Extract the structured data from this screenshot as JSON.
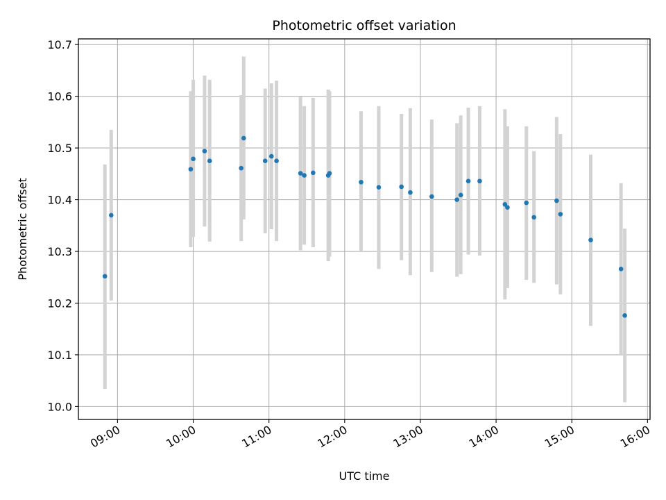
{
  "chart_data": {
    "type": "scatter",
    "title": "Photometric offset variation",
    "xlabel": "UTC time",
    "ylabel": "Photometric offset",
    "xlim": [
      "08:29",
      "16:02"
    ],
    "ylim": [
      9.975,
      10.711
    ],
    "x_ticks": [
      "09:00",
      "10:00",
      "11:00",
      "12:00",
      "13:00",
      "14:00",
      "15:00",
      "16:00"
    ],
    "y_ticks": [
      10.0,
      10.1,
      10.2,
      10.3,
      10.4,
      10.5,
      10.6,
      10.7
    ],
    "y_tick_labels": [
      "10.0",
      "10.1",
      "10.2",
      "10.3",
      "10.4",
      "10.5",
      "10.6",
      "10.7"
    ],
    "grid": true,
    "colors": {
      "points": "#1f77b4",
      "error_bars": "#d3d3d3",
      "grid": "#b0b0b0"
    },
    "points": [
      {
        "x": "08:50",
        "y": 10.252,
        "y_low": 10.034,
        "y_high": 10.468
      },
      {
        "x": "08:55",
        "y": 10.37,
        "y_low": 10.205,
        "y_high": 10.535
      },
      {
        "x": "09:58",
        "y": 10.459,
        "y_low": 10.308,
        "y_high": 10.61
      },
      {
        "x": "10:00",
        "y": 10.479,
        "y_low": 10.328,
        "y_high": 10.632
      },
      {
        "x": "10:09",
        "y": 10.494,
        "y_low": 10.348,
        "y_high": 10.64
      },
      {
        "x": "10:13",
        "y": 10.475,
        "y_low": 10.319,
        "y_high": 10.632
      },
      {
        "x": "10:38",
        "y": 10.461,
        "y_low": 10.32,
        "y_high": 10.602
      },
      {
        "x": "10:40",
        "y": 10.519,
        "y_low": 10.362,
        "y_high": 10.677
      },
      {
        "x": "10:57",
        "y": 10.475,
        "y_low": 10.335,
        "y_high": 10.615
      },
      {
        "x": "11:02",
        "y": 10.484,
        "y_low": 10.343,
        "y_high": 10.625
      },
      {
        "x": "11:06",
        "y": 10.475,
        "y_low": 10.32,
        "y_high": 10.63
      },
      {
        "x": "11:25",
        "y": 10.451,
        "y_low": 10.302,
        "y_high": 10.599
      },
      {
        "x": "11:28",
        "y": 10.447,
        "y_low": 10.313,
        "y_high": 10.581
      },
      {
        "x": "11:35",
        "y": 10.452,
        "y_low": 10.308,
        "y_high": 10.597
      },
      {
        "x": "11:47",
        "y": 10.447,
        "y_low": 10.281,
        "y_high": 10.613
      },
      {
        "x": "11:48",
        "y": 10.451,
        "y_low": 10.29,
        "y_high": 10.61
      },
      {
        "x": "12:13",
        "y": 10.434,
        "y_low": 10.3,
        "y_high": 10.571
      },
      {
        "x": "12:27",
        "y": 10.424,
        "y_low": 10.266,
        "y_high": 10.581
      },
      {
        "x": "12:45",
        "y": 10.425,
        "y_low": 10.283,
        "y_high": 10.566
      },
      {
        "x": "12:52",
        "y": 10.414,
        "y_low": 10.254,
        "y_high": 10.577
      },
      {
        "x": "13:09",
        "y": 10.406,
        "y_low": 10.26,
        "y_high": 10.555
      },
      {
        "x": "13:29",
        "y": 10.4,
        "y_low": 10.251,
        "y_high": 10.548
      },
      {
        "x": "13:32",
        "y": 10.409,
        "y_low": 10.256,
        "y_high": 10.563
      },
      {
        "x": "13:38",
        "y": 10.436,
        "y_low": 10.294,
        "y_high": 10.578
      },
      {
        "x": "13:47",
        "y": 10.436,
        "y_low": 10.292,
        "y_high": 10.581
      },
      {
        "x": "14:07",
        "y": 10.391,
        "y_low": 10.207,
        "y_high": 10.575
      },
      {
        "x": "14:09",
        "y": 10.385,
        "y_low": 10.229,
        "y_high": 10.542
      },
      {
        "x": "14:24",
        "y": 10.394,
        "y_low": 10.245,
        "y_high": 10.542
      },
      {
        "x": "14:30",
        "y": 10.366,
        "y_low": 10.239,
        "y_high": 10.494
      },
      {
        "x": "14:48",
        "y": 10.398,
        "y_low": 10.236,
        "y_high": 10.56
      },
      {
        "x": "14:51",
        "y": 10.372,
        "y_low": 10.217,
        "y_high": 10.527
      },
      {
        "x": "15:15",
        "y": 10.322,
        "y_low": 10.156,
        "y_high": 10.487
      },
      {
        "x": "15:39",
        "y": 10.266,
        "y_low": 10.1,
        "y_high": 10.432
      },
      {
        "x": "15:42",
        "y": 10.176,
        "y_low": 10.008,
        "y_high": 10.344
      }
    ]
  }
}
